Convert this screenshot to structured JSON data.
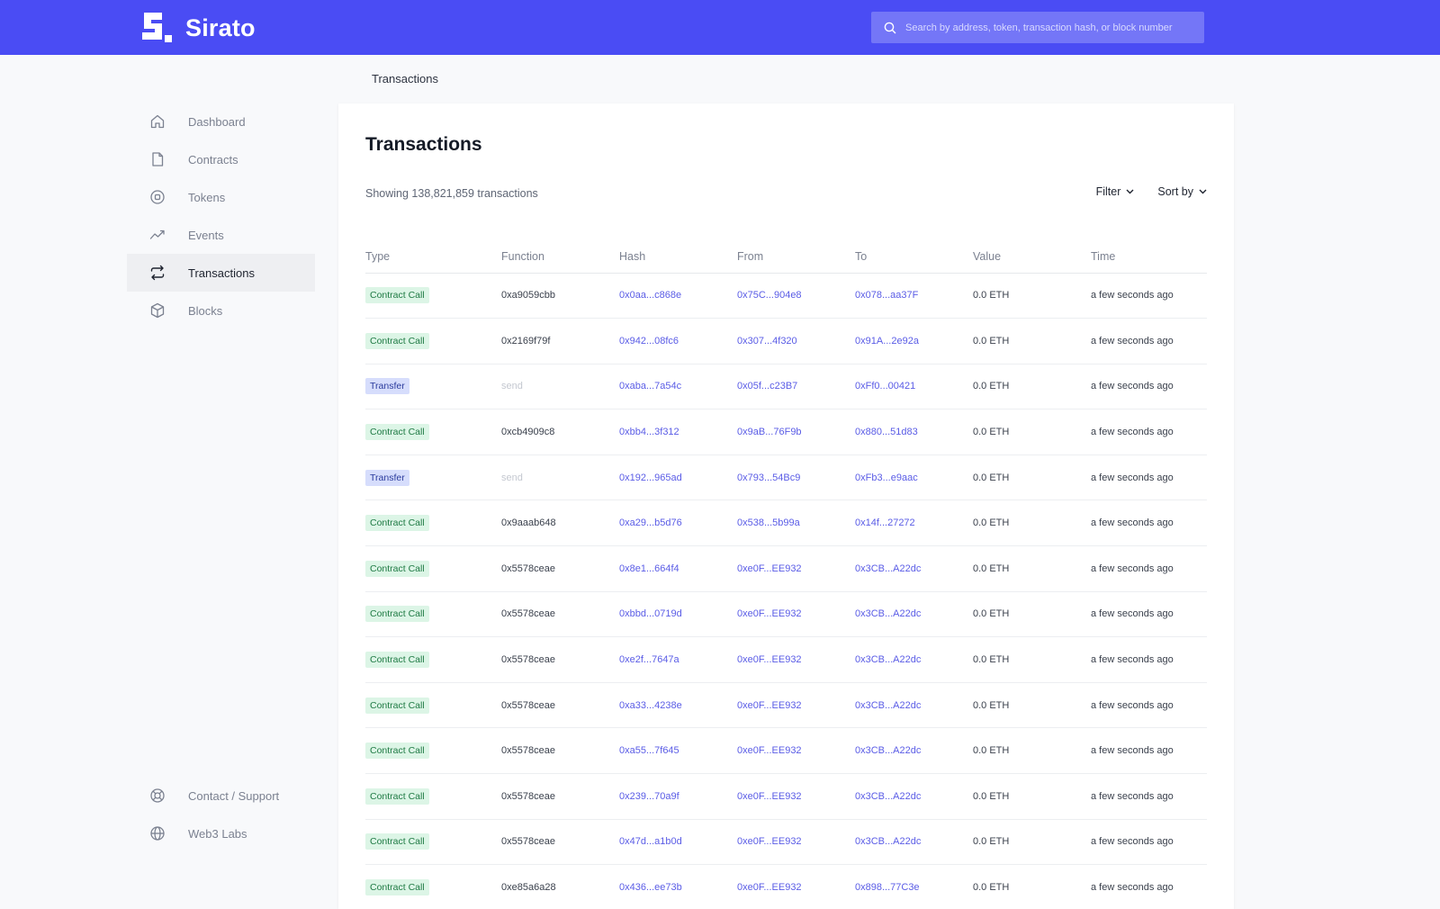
{
  "app": {
    "name": "Sirato",
    "brand_color": "#4a4cf4"
  },
  "search": {
    "placeholder": "Search by address, token, transaction hash, or block number"
  },
  "breadcrumb": "Transactions",
  "sidebar": {
    "items": [
      {
        "label": "Dashboard",
        "icon": "home-icon"
      },
      {
        "label": "Contracts",
        "icon": "document-icon"
      },
      {
        "label": "Tokens",
        "icon": "token-icon"
      },
      {
        "label": "Events",
        "icon": "activity-icon"
      },
      {
        "label": "Transactions",
        "icon": "transfer-icon",
        "active": true
      },
      {
        "label": "Blocks",
        "icon": "cube-icon"
      }
    ],
    "bottom_items": [
      {
        "label": "Contact / Support",
        "icon": "lifebuoy-icon"
      },
      {
        "label": "Web3 Labs",
        "icon": "globe-icon"
      }
    ]
  },
  "main": {
    "title": "Transactions",
    "count_text": "Showing 138,821,859 transactions",
    "filter_label": "Filter",
    "sort_label": "Sort by",
    "columns": [
      "Type",
      "Function",
      "Hash",
      "From",
      "To",
      "Value",
      "Time"
    ],
    "rows": [
      {
        "type": "Contract Call",
        "function": "0xa9059cbb",
        "hash": "0x0aa...c868e",
        "from": "0x75C...904e8",
        "to": "0x078...aa37F",
        "value": "0.0 ETH",
        "time": "a few seconds ago"
      },
      {
        "type": "Contract Call",
        "function": "0x2169f79f",
        "hash": "0x942...08fc6",
        "from": "0x307...4f320",
        "to": "0x91A...2e92a",
        "value": "0.0 ETH",
        "time": "a few seconds ago"
      },
      {
        "type": "Transfer",
        "function": "send",
        "hash": "0xaba...7a54c",
        "from": "0x05f...c23B7",
        "to": "0xFf0...00421",
        "value": "0.0 ETH",
        "time": "a few seconds ago"
      },
      {
        "type": "Contract Call",
        "function": "0xcb4909c8",
        "hash": "0xbb4...3f312",
        "from": "0x9aB...76F9b",
        "to": "0x880...51d83",
        "value": "0.0 ETH",
        "time": "a few seconds ago"
      },
      {
        "type": "Transfer",
        "function": "send",
        "hash": "0x192...965ad",
        "from": "0x793...54Bc9",
        "to": "0xFb3...e9aac",
        "value": "0.0 ETH",
        "time": "a few seconds ago"
      },
      {
        "type": "Contract Call",
        "function": "0x9aaab648",
        "hash": "0xa29...b5d76",
        "from": "0x538...5b99a",
        "to": "0x14f...27272",
        "value": "0.0 ETH",
        "time": "a few seconds ago"
      },
      {
        "type": "Contract Call",
        "function": "0x5578ceae",
        "hash": "0x8e1...664f4",
        "from": "0xe0F...EE932",
        "to": "0x3CB...A22dc",
        "value": "0.0 ETH",
        "time": "a few seconds ago"
      },
      {
        "type": "Contract Call",
        "function": "0x5578ceae",
        "hash": "0xbbd...0719d",
        "from": "0xe0F...EE932",
        "to": "0x3CB...A22dc",
        "value": "0.0 ETH",
        "time": "a few seconds ago"
      },
      {
        "type": "Contract Call",
        "function": "0x5578ceae",
        "hash": "0xe2f...7647a",
        "from": "0xe0F...EE932",
        "to": "0x3CB...A22dc",
        "value": "0.0 ETH",
        "time": "a few seconds ago"
      },
      {
        "type": "Contract Call",
        "function": "0x5578ceae",
        "hash": "0xa33...4238e",
        "from": "0xe0F...EE932",
        "to": "0x3CB...A22dc",
        "value": "0.0 ETH",
        "time": "a few seconds ago"
      },
      {
        "type": "Contract Call",
        "function": "0x5578ceae",
        "hash": "0xa55...7f645",
        "from": "0xe0F...EE932",
        "to": "0x3CB...A22dc",
        "value": "0.0 ETH",
        "time": "a few seconds ago"
      },
      {
        "type": "Contract Call",
        "function": "0x5578ceae",
        "hash": "0x239...70a9f",
        "from": "0xe0F...EE932",
        "to": "0x3CB...A22dc",
        "value": "0.0 ETH",
        "time": "a few seconds ago"
      },
      {
        "type": "Contract Call",
        "function": "0x5578ceae",
        "hash": "0x47d...a1b0d",
        "from": "0xe0F...EE932",
        "to": "0x3CB...A22dc",
        "value": "0.0 ETH",
        "time": "a few seconds ago"
      },
      {
        "type": "Contract Call",
        "function": "0xe85a6a28",
        "hash": "0x436...ee73b",
        "from": "0xe0F...EE932",
        "to": "0x898...77C3e",
        "value": "0.0 ETH",
        "time": "a few seconds ago"
      }
    ]
  }
}
